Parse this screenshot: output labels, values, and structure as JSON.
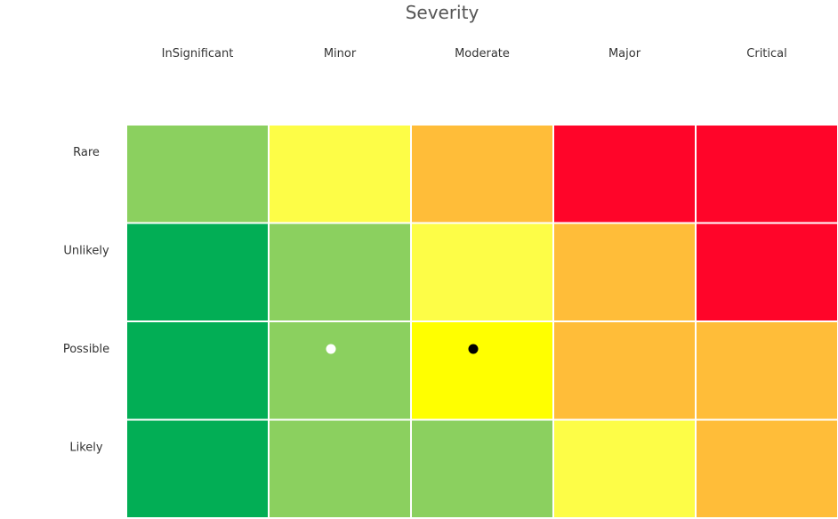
{
  "chart_data": {
    "type": "heatmap",
    "title": "Severity",
    "columns": [
      "InSignificant",
      "Minor",
      "Moderate",
      "Major",
      "Critical"
    ],
    "rows": [
      "Rare",
      "Unlikely",
      "Possible",
      "Likely"
    ],
    "cells": [
      [
        "light-green",
        "light-yellow",
        "orange",
        "red",
        "red"
      ],
      [
        "green",
        "light-green",
        "light-yellow",
        "orange",
        "red"
      ],
      [
        "green",
        "light-green",
        "yellow",
        "orange",
        "orange"
      ],
      [
        "green",
        "light-green",
        "light-green",
        "light-yellow",
        "orange"
      ]
    ],
    "palette": {
      "green": "#02ae55",
      "light-green": "#8bd05f",
      "light-yellow": "#fdfd47",
      "yellow": "#ffff00",
      "orange": "#ffbd39",
      "red": "#ff0529"
    },
    "points": [
      {
        "column": "Minor",
        "row": "Possible",
        "color": "#ffffff"
      },
      {
        "column": "Moderate",
        "row": "Possible",
        "color": "#000000"
      }
    ]
  }
}
